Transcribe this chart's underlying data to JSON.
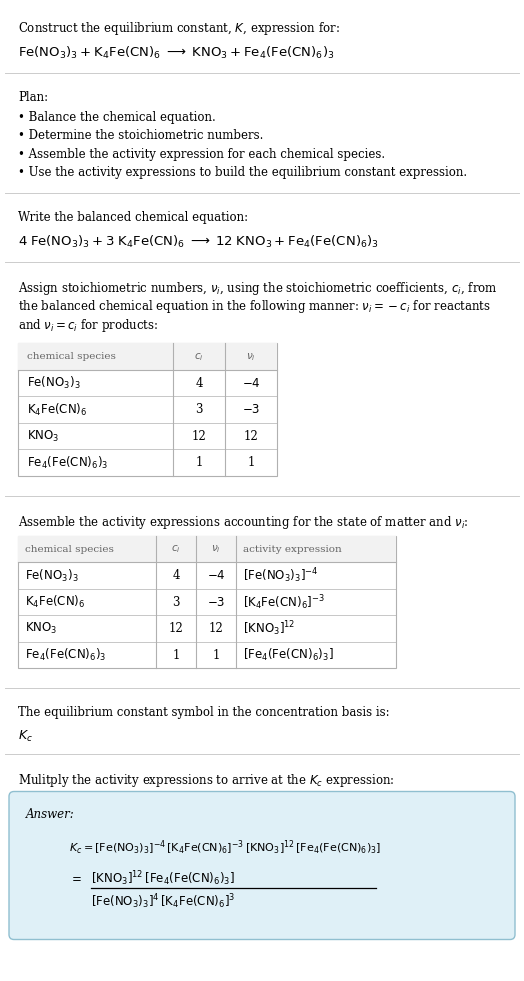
{
  "title_line1": "Construct the equilibrium constant, $K$, expression for:",
  "title_line2": "$\\mathrm{Fe(NO_3)_3 + K_4Fe(CN)_6 \\;\\longrightarrow\\; KNO_3 + Fe_4(Fe(CN)_6)_3}$",
  "plan_header": "Plan:",
  "plan_items": [
    "• Balance the chemical equation.",
    "• Determine the stoichiometric numbers.",
    "• Assemble the activity expression for each chemical species.",
    "• Use the activity expressions to build the equilibrium constant expression."
  ],
  "balanced_header": "Write the balanced chemical equation:",
  "balanced_eq": "$\\mathrm{4\\;Fe(NO_3)_3 + 3\\;K_4Fe(CN)_6 \\;\\longrightarrow\\; 12\\;KNO_3 + Fe_4(Fe(CN)_6)_3}$",
  "stoich_intro_1": "Assign stoichiometric numbers, $\\nu_i$, using the stoichiometric coefficients, $c_i$, from",
  "stoich_intro_2": "the balanced chemical equation in the following manner: $\\nu_i = -c_i$ for reactants",
  "stoich_intro_3": "and $\\nu_i = c_i$ for products:",
  "table1_headers": [
    "chemical species",
    "$c_i$",
    "$\\nu_i$"
  ],
  "table1_rows": [
    [
      "$\\mathrm{Fe(NO_3)_3}$",
      "4",
      "$-4$"
    ],
    [
      "$\\mathrm{K_4Fe(CN)_6}$",
      "3",
      "$-3$"
    ],
    [
      "$\\mathrm{KNO_3}$",
      "12",
      "12"
    ],
    [
      "$\\mathrm{Fe_4(Fe(CN)_6)_3}$",
      "1",
      "1"
    ]
  ],
  "activity_intro": "Assemble the activity expressions accounting for the state of matter and $\\nu_i$:",
  "table2_headers": [
    "chemical species",
    "$c_i$",
    "$\\nu_i$",
    "activity expression"
  ],
  "table2_rows": [
    [
      "$\\mathrm{Fe(NO_3)_3}$",
      "4",
      "$-4$",
      "$[\\mathrm{Fe(NO_3)_3}]^{-4}$"
    ],
    [
      "$\\mathrm{K_4Fe(CN)_6}$",
      "3",
      "$-3$",
      "$[\\mathrm{K_4Fe(CN)_6}]^{-3}$"
    ],
    [
      "$\\mathrm{KNO_3}$",
      "12",
      "12",
      "$[\\mathrm{KNO_3}]^{12}$"
    ],
    [
      "$\\mathrm{Fe_4(Fe(CN)_6)_3}$",
      "1",
      "1",
      "$[\\mathrm{Fe_4(Fe(CN)_6)_3}]$"
    ]
  ],
  "kc_text": "The equilibrium constant symbol in the concentration basis is:",
  "kc_symbol": "$K_c$",
  "multiply_text": "Mulitply the activity expressions to arrive at the $K_c$ expression:",
  "answer_label": "Answer:",
  "kc_eq_line1": "$K_c = [\\mathrm{Fe(NO_3)_3}]^{-4}\\,[\\mathrm{K_4Fe(CN)_6}]^{-3}\\,[\\mathrm{KNO_3}]^{12}\\,[\\mathrm{Fe_4(Fe(CN)_6)_3}]$",
  "kc_eq_equals": "$=$",
  "kc_eq_line2_num": "$[\\mathrm{KNO_3}]^{12}\\,[\\mathrm{Fe_4(Fe(CN)_6)_3}]$",
  "kc_eq_line2_den": "$[\\mathrm{Fe(NO_3)_3}]^4\\,[\\mathrm{K_4Fe(CN)_6}]^3$",
  "bg_color": "#ffffff",
  "text_color": "#000000",
  "gray_text": "#666666",
  "table_border_color": "#b0b0b0",
  "answer_box_bg": "#dff0f7",
  "answer_box_border": "#90bfd0",
  "separator_color": "#cccccc"
}
